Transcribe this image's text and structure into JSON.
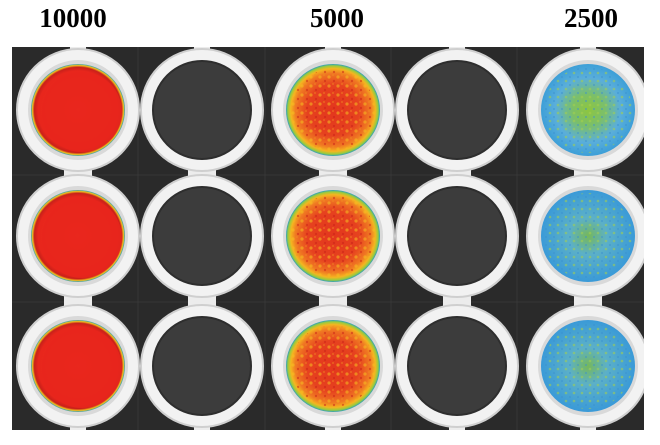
{
  "labels": {
    "col1": "10000",
    "col3": "5000",
    "col5": "2500"
  },
  "palette": {
    "plate_dark": "#2a2a2a",
    "well_ring": "#f2f2f2",
    "empty_well": "#3c3c3c",
    "high_signal": "#e8261c",
    "mid_signal_red": "#e3361d",
    "mid_signal_yellow": "#f5b520",
    "low_signal_blue": "#4ea7d8",
    "low_signal_green": "#8ec63f",
    "edge_cyan": "#2a9ec1"
  },
  "wells": {
    "columns": 5,
    "rows": 3,
    "column_states": [
      "high",
      "empty",
      "mid",
      "empty",
      "low"
    ]
  }
}
